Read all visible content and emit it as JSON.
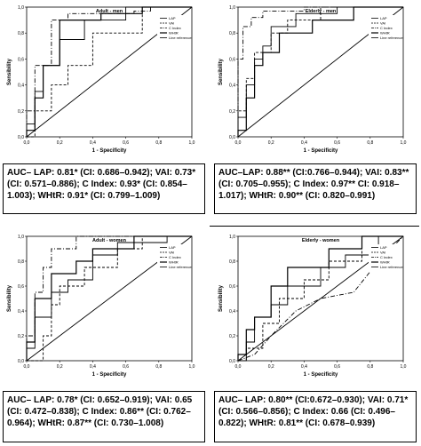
{
  "chart_data": [
    {
      "type": "line",
      "title": "Adult - men",
      "xlabel": "1 - Specificity",
      "ylabel": "Sensibility",
      "xlim": [
        0,
        1
      ],
      "ylim": [
        0,
        1
      ],
      "xticks": [
        "0,0",
        "0,2",
        "0,4",
        "0,6",
        "0,8",
        "1,0"
      ],
      "yticks": [
        "0,0",
        "0,2",
        "0,4",
        "0,6",
        "0,8",
        "1,0"
      ],
      "legend_position": "top-right",
      "grid": false,
      "series": [
        {
          "name": "LAP",
          "style": "solid",
          "color": "#000000",
          "x": [
            0,
            0,
            0.05,
            0.05,
            0.1,
            0.1,
            0.2,
            0.2,
            0.35,
            0.35,
            0.6,
            0.6,
            1.0
          ],
          "y": [
            0,
            0.1,
            0.1,
            0.35,
            0.35,
            0.55,
            0.55,
            0.75,
            0.75,
            0.9,
            0.9,
            1.0,
            1.0
          ]
        },
        {
          "name": "VAI",
          "style": "dash",
          "color": "#000000",
          "x": [
            0,
            0.05,
            0.05,
            0.15,
            0.15,
            0.25,
            0.25,
            0.4,
            0.4,
            0.7,
            0.7,
            1.0
          ],
          "y": [
            0,
            0,
            0.2,
            0.2,
            0.4,
            0.4,
            0.55,
            0.55,
            0.8,
            0.8,
            1.0,
            1.0
          ]
        },
        {
          "name": "C Index",
          "style": "dashdot",
          "color": "#000000",
          "x": [
            0,
            0,
            0.05,
            0.05,
            0.15,
            0.15,
            0.25,
            0.25,
            0.65,
            0.65,
            0.75,
            0.75,
            1.0
          ],
          "y": [
            0,
            0.2,
            0.2,
            0.55,
            0.55,
            0.9,
            0.9,
            0.95,
            0.95,
            0.97,
            0.97,
            1.0,
            1.0
          ]
        },
        {
          "name": "WHtR",
          "style": "solid",
          "color": "#000000",
          "x": [
            0,
            0,
            0.05,
            0.05,
            0.1,
            0.1,
            0.2,
            0.2,
            0.45,
            0.45,
            0.7,
            0.7,
            1.0
          ],
          "y": [
            0,
            0.05,
            0.05,
            0.3,
            0.3,
            0.55,
            0.55,
            0.9,
            0.9,
            0.95,
            0.95,
            1.0,
            1.0
          ]
        },
        {
          "name": "Line reference",
          "style": "solid",
          "color": "#000000",
          "x": [
            0,
            1
          ],
          "y": [
            0,
            1
          ]
        }
      ]
    },
    {
      "type": "line",
      "title": "Elderly - men",
      "xlabel": "1 - Specificity",
      "ylabel": "Sensibility",
      "xlim": [
        0,
        1
      ],
      "ylim": [
        0,
        1
      ],
      "xticks": [
        "0,0",
        "0,2",
        "0,4",
        "0,6",
        "0,8",
        "1,0"
      ],
      "yticks": [
        "0,0",
        "0,2",
        "0,4",
        "0,6",
        "0,8",
        "1,0"
      ],
      "legend_position": "top-right",
      "grid": false,
      "series": [
        {
          "name": "LAP",
          "style": "solid",
          "color": "#000000",
          "x": [
            0,
            0,
            0.05,
            0.05,
            0.1,
            0.1,
            0.15,
            0.15,
            0.2,
            0.2,
            0.35,
            0.35,
            0.6,
            0.6,
            1.0
          ],
          "y": [
            0,
            0.15,
            0.15,
            0.4,
            0.4,
            0.6,
            0.6,
            0.7,
            0.7,
            0.85,
            0.85,
            0.95,
            0.95,
            1.0,
            1.0
          ]
        },
        {
          "name": "VAI",
          "style": "dash",
          "color": "#000000",
          "x": [
            0,
            0,
            0.05,
            0.05,
            0.1,
            0.1,
            0.2,
            0.2,
            0.3,
            0.3,
            0.5,
            0.5,
            1.0
          ],
          "y": [
            0,
            0.2,
            0.2,
            0.45,
            0.45,
            0.65,
            0.65,
            0.8,
            0.8,
            0.9,
            0.9,
            1.0,
            1.0
          ]
        },
        {
          "name": "C Index",
          "style": "dashdot",
          "color": "#000000",
          "x": [
            0,
            0,
            0.03,
            0.03,
            0.08,
            0.08,
            0.15,
            0.15,
            0.4,
            0.4,
            1.0
          ],
          "y": [
            0,
            0.6,
            0.6,
            0.85,
            0.85,
            0.92,
            0.92,
            0.97,
            0.97,
            1.0,
            1.0
          ]
        },
        {
          "name": "WHtR",
          "style": "solid",
          "color": "#000000",
          "x": [
            0,
            0,
            0.05,
            0.05,
            0.1,
            0.1,
            0.15,
            0.15,
            0.25,
            0.25,
            0.45,
            0.45,
            0.7,
            0.7,
            1.0
          ],
          "y": [
            0,
            0.05,
            0.05,
            0.3,
            0.3,
            0.55,
            0.55,
            0.65,
            0.65,
            0.8,
            0.8,
            0.9,
            0.9,
            1.0,
            1.0
          ]
        },
        {
          "name": "Line reference",
          "style": "solid",
          "color": "#000000",
          "x": [
            0,
            1
          ],
          "y": [
            0,
            1
          ]
        }
      ]
    },
    {
      "type": "line",
      "title": "Adult - women",
      "xlabel": "1 - Specificity",
      "ylabel": "Sensibility",
      "xlim": [
        0,
        1
      ],
      "ylim": [
        0,
        1
      ],
      "xticks": [
        "0,0",
        "0,2",
        "0,4",
        "0,6",
        "0,8",
        "1,0"
      ],
      "yticks": [
        "0,0",
        "0,2",
        "0,4",
        "0,6",
        "0,8",
        "1,0"
      ],
      "legend_position": "top-right",
      "grid": false,
      "series": [
        {
          "name": "LAP",
          "style": "solid",
          "color": "#000000",
          "x": [
            0,
            0,
            0.05,
            0.05,
            0.15,
            0.15,
            0.25,
            0.25,
            0.4,
            0.4,
            0.55,
            0.55,
            0.85,
            0.85,
            1.0
          ],
          "y": [
            0,
            0.1,
            0.1,
            0.35,
            0.35,
            0.55,
            0.55,
            0.65,
            0.65,
            0.85,
            0.85,
            0.95,
            0.95,
            1.0,
            1.0
          ]
        },
        {
          "name": "VAI",
          "style": "dash",
          "color": "#000000",
          "x": [
            0,
            0.1,
            0.1,
            0.15,
            0.15,
            0.2,
            0.2,
            0.35,
            0.35,
            0.55,
            0.55,
            0.7,
            0.7,
            1.0
          ],
          "y": [
            0,
            0,
            0.2,
            0.2,
            0.45,
            0.45,
            0.6,
            0.6,
            0.75,
            0.75,
            0.9,
            0.9,
            1.0,
            1.0
          ]
        },
        {
          "name": "C Index",
          "style": "dashdot",
          "color": "#000000",
          "x": [
            0,
            0,
            0.05,
            0.05,
            0.1,
            0.1,
            0.15,
            0.15,
            0.3,
            0.3,
            1.0
          ],
          "y": [
            0,
            0.2,
            0.2,
            0.55,
            0.55,
            0.75,
            0.75,
            0.9,
            0.9,
            1.0,
            1.0
          ]
        },
        {
          "name": "WHtR",
          "style": "solid",
          "color": "#000000",
          "x": [
            0,
            0,
            0.05,
            0.05,
            0.15,
            0.15,
            0.3,
            0.3,
            0.4,
            0.4,
            0.65,
            0.65,
            1.0
          ],
          "y": [
            0,
            0.15,
            0.15,
            0.5,
            0.5,
            0.7,
            0.7,
            0.8,
            0.8,
            0.9,
            0.9,
            1.0,
            1.0
          ]
        },
        {
          "name": "Line reference",
          "style": "solid",
          "color": "#000000",
          "x": [
            0,
            1
          ],
          "y": [
            0,
            1
          ]
        }
      ]
    },
    {
      "type": "line",
      "title": "Elderly - women",
      "xlabel": "1 - Specificity",
      "ylabel": "Sensibility",
      "xlim": [
        0,
        1
      ],
      "ylim": [
        0,
        1
      ],
      "xticks": [
        "0,0",
        "0,2",
        "0,4",
        "0,6",
        "0,8",
        "1,0"
      ],
      "yticks": [
        "0,0",
        "0,2",
        "0,4",
        "0,6",
        "0,8",
        "1,0"
      ],
      "legend_position": "top-right",
      "grid": false,
      "series": [
        {
          "name": "LAP",
          "style": "solid",
          "color": "#000000",
          "x": [
            0,
            0.05,
            0.05,
            0.1,
            0.1,
            0.2,
            0.2,
            0.3,
            0.3,
            0.5,
            0.5,
            0.65,
            0.65,
            0.85,
            0.85,
            1.0
          ],
          "y": [
            0,
            0,
            0.15,
            0.15,
            0.35,
            0.35,
            0.45,
            0.45,
            0.6,
            0.6,
            0.75,
            0.75,
            0.85,
            0.85,
            1.0,
            1.0
          ]
        },
        {
          "name": "VAI",
          "style": "dash",
          "color": "#000000",
          "x": [
            0,
            0.05,
            0.05,
            0.15,
            0.15,
            0.25,
            0.25,
            0.4,
            0.4,
            0.55,
            0.55,
            0.75,
            0.75,
            1.0
          ],
          "y": [
            0,
            0,
            0.1,
            0.1,
            0.3,
            0.3,
            0.5,
            0.5,
            0.65,
            0.65,
            0.8,
            0.8,
            1.0,
            1.0
          ]
        },
        {
          "name": "C Index",
          "style": "dashdot",
          "color": "#000000",
          "x": [
            0,
            0.1,
            0.1,
            0.2,
            0.2,
            0.35,
            0.35,
            0.5,
            0.5,
            0.7,
            0.7,
            0.85,
            0.85,
            1.0
          ],
          "y": [
            0,
            0.05,
            0.05,
            0.2,
            0.2,
            0.4,
            0.4,
            0.5,
            0.5,
            0.55,
            0.55,
            0.8,
            0.8,
            1.0
          ]
        },
        {
          "name": "WHtR",
          "style": "solid",
          "color": "#000000",
          "x": [
            0,
            0,
            0.05,
            0.05,
            0.1,
            0.1,
            0.2,
            0.2,
            0.3,
            0.3,
            0.55,
            0.55,
            0.75,
            0.75,
            1.0
          ],
          "y": [
            0,
            0.05,
            0.05,
            0.25,
            0.25,
            0.35,
            0.35,
            0.6,
            0.6,
            0.75,
            0.75,
            0.9,
            0.9,
            1.0,
            1.0
          ]
        },
        {
          "name": "Line reference",
          "style": "solid",
          "color": "#000000",
          "x": [
            0,
            1
          ],
          "y": [
            0,
            1
          ]
        }
      ]
    }
  ],
  "captions": [
    "AUC– LAP: 0.81* (CI: 0.686–0.942); VAI: 0.73* (CI: 0.571–0.886); C Index: 0.93* (CI: 0.854–1.003); WHtR: 0.91* (CI: 0.799–1.009)",
    "AUC–LAP: 0.88** (CI:0.766–0.944); VAI: 0.83** (CI: 0.705–0.955); C Index: 0.97** CI: 0.918–1.017); WHtR: 0.90** (CI: 0.820–0.991)",
    "AUC– LAP: 0.78* (CI: 0.652–0.919); VAI: 0.65 (CI: 0.472–0.838); C Index: 0.86** (CI: 0.762–0.964); WHtR: 0.87** (CI: 0.730–1.008)",
    "AUC– LAP: 0.80** (CI:0.672–0.930); VAI: 0.71* (CI: 0.566–0.856); C Index: 0.66 (CI: 0.496–0.822); WHtR: 0.81** (CI: 0.678–0.939)"
  ]
}
